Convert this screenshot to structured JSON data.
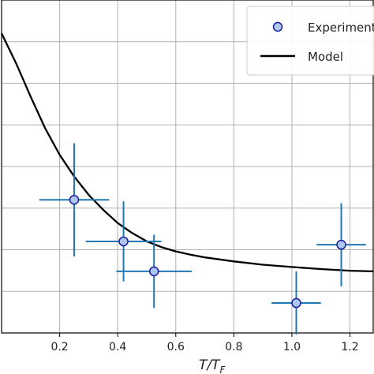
{
  "chart_data": {
    "type": "scatter",
    "xlabel": "T/T",
    "xlabel_sub": "F",
    "xlim": [
      0.0,
      1.28
    ],
    "ylim": [
      0.0,
      1.0
    ],
    "x_ticks": [
      0.2,
      0.4,
      0.6,
      0.8,
      1.0,
      1.2
    ],
    "x_tick_labels": [
      "0.2",
      "0.4",
      "0.6",
      "0.8",
      "1.0",
      "1.2"
    ],
    "y_gridlines": [
      0.125,
      0.25,
      0.375,
      0.5,
      0.625,
      0.75,
      0.875
    ],
    "grid": true,
    "legend_position": "top-right",
    "series": [
      {
        "name": "Experiment",
        "kind": "points-with-errorbars",
        "color": "#1f77b4",
        "marker_fill": "#aec7f0",
        "marker_edge": "#1a1aa0",
        "points": [
          {
            "x": 0.25,
            "y": 0.4,
            "xerr": 0.12,
            "yerr": 0.17
          },
          {
            "x": 0.42,
            "y": 0.275,
            "xerr": 0.13,
            "yerr": 0.12
          },
          {
            "x": 0.525,
            "y": 0.185,
            "xerr": 0.13,
            "yerr": 0.11
          },
          {
            "x": 1.015,
            "y": 0.09,
            "xerr": 0.085,
            "yerr": 0.095
          },
          {
            "x": 1.17,
            "y": 0.265,
            "xerr": 0.085,
            "yerr": 0.125
          }
        ]
      },
      {
        "name": "Model",
        "kind": "line",
        "color": "#000000",
        "x": [
          0.0,
          0.05,
          0.1,
          0.15,
          0.2,
          0.25,
          0.3,
          0.35,
          0.4,
          0.45,
          0.5,
          0.55,
          0.6,
          0.65,
          0.7,
          0.8,
          0.9,
          1.0,
          1.1,
          1.2,
          1.28
        ],
        "y": [
          0.9,
          0.81,
          0.71,
          0.615,
          0.535,
          0.47,
          0.415,
          0.37,
          0.33,
          0.3,
          0.275,
          0.258,
          0.245,
          0.235,
          0.227,
          0.215,
          0.205,
          0.198,
          0.192,
          0.187,
          0.185
        ]
      }
    ]
  }
}
